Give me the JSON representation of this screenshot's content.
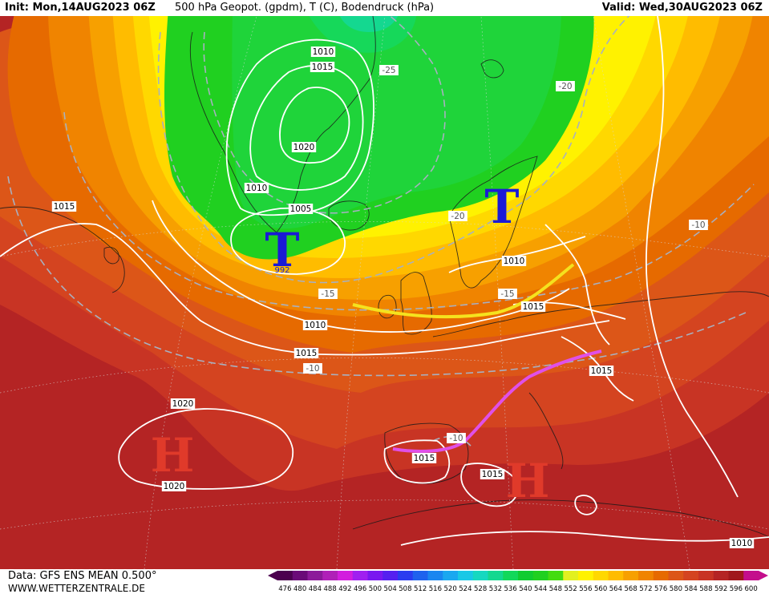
{
  "header": {
    "init": "Init: Mon,14AUG2023 06Z",
    "title": "500 hPa Geopot. (gpdm), T (C), Bodendruck (hPa)",
    "valid": "Valid: Wed,30AUG2023 06Z"
  },
  "footer": {
    "data_source": "Data: GFS ENS MEAN 0.500°",
    "website": "WWW.WETTERZENTRALE.DE"
  },
  "legend": {
    "values": [
      "476",
      "480",
      "484",
      "488",
      "492",
      "496",
      "500",
      "504",
      "508",
      "512",
      "516",
      "520",
      "524",
      "528",
      "532",
      "536",
      "540",
      "544",
      "548",
      "552",
      "556",
      "560",
      "564",
      "568",
      "572",
      "576",
      "580",
      "584",
      "588",
      "592",
      "596",
      "600"
    ],
    "colors": [
      "#4b004f",
      "#6a0a78",
      "#8c1a9a",
      "#b020b8",
      "#d21ede",
      "#a020f0",
      "#7a18f0",
      "#5520f0",
      "#2a3cf0",
      "#1e62ee",
      "#1a86f0",
      "#1aa8f0",
      "#18c8e6",
      "#16d8c0",
      "#14d890",
      "#12d85a",
      "#10cc30",
      "#20d020",
      "#44dc10",
      "#e2f020",
      "#fff200",
      "#ffd800",
      "#ffbc00",
      "#f7a000",
      "#f08400",
      "#e66a00",
      "#dc5618",
      "#d44420",
      "#c83424",
      "#b42424",
      "#a0181c",
      "#c40e8c"
    ]
  },
  "map_labels": {
    "pressure_symbols": [
      {
        "letter": "T",
        "kind": "low",
        "color": "#1a1ad6"
      },
      {
        "letter": "T",
        "kind": "low",
        "color": "#1a1ad6"
      },
      {
        "letter": "H",
        "kind": "high",
        "color": "#e03a2a"
      },
      {
        "letter": "H",
        "kind": "high",
        "color": "#e03a2a"
      }
    ],
    "low_center_value": "992",
    "isobars": [
      "1010",
      "1015",
      "1020",
      "1010",
      "1005",
      "1015",
      "1010",
      "1015",
      "1010",
      "1015",
      "1020",
      "1020",
      "1015",
      "1015",
      "1015",
      "1010"
    ],
    "temperatures": [
      "-25",
      "-20",
      "-20",
      "-15",
      "-15",
      "-10",
      "-10",
      "-10"
    ]
  },
  "colors": {
    "trough_axis_yellow": "#f5e21e",
    "trough_axis_magenta": "#e050e8",
    "isobar": "#ffffff",
    "isotherm": "#a8b0c0"
  }
}
